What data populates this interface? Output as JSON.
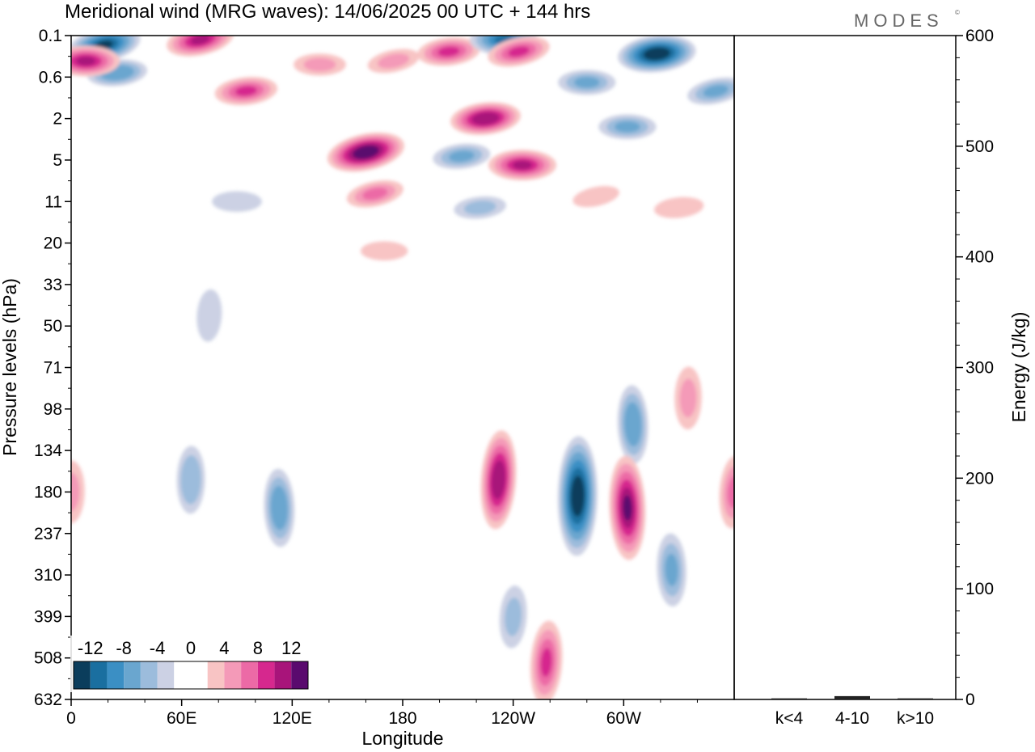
{
  "title": "Meridional wind (MRG waves):  14/06/2025  00 UTC  + 144 hrs",
  "brand": "MODES",
  "brand_mark": "©",
  "chart_data": [
    {
      "type": "heatmap",
      "variable": "Meridional wind",
      "xlabel": "Longitude",
      "ylabel": "Pressure levels (hPa)",
      "x_ticks": [
        "0",
        "60E",
        "120E",
        "180",
        "120W",
        "60W"
      ],
      "x_tick_positions_deg": [
        0,
        60,
        120,
        180,
        240,
        300
      ],
      "xlim_deg": [
        0,
        360
      ],
      "y_ticks": [
        "0.1",
        "0.6",
        "2",
        "5",
        "11",
        "20",
        "33",
        "50",
        "71",
        "98",
        "134",
        "180",
        "237",
        "310",
        "399",
        "508",
        "632"
      ],
      "colorbar": {
        "labels": [
          "-12",
          "-8",
          "-4",
          "0",
          "4",
          "8",
          "12"
        ],
        "levels": [
          -14,
          -12,
          -10,
          -8,
          -6,
          -4,
          -2,
          0,
          2,
          4,
          6,
          8,
          10,
          12,
          14
        ],
        "colors": [
          "#0b3d5c",
          "#1a6fa0",
          "#3b8fc4",
          "#6aa6cf",
          "#9cbcdc",
          "#ccd1e4",
          "#ffffff",
          "#ffffff",
          "#f8c4c4",
          "#f49ab8",
          "#ec6aa6",
          "#d6288e",
          "#a8147a",
          "#5a0a6e"
        ]
      },
      "features": [
        {
          "lon": 18,
          "p": 0.15,
          "value": -12
        },
        {
          "lon": 25,
          "p": 0.5,
          "value": -7
        },
        {
          "lon": 8,
          "p": 0.3,
          "value": 10
        },
        {
          "lon": 70,
          "p": 0.12,
          "value": 10
        },
        {
          "lon": 95,
          "p": 0.9,
          "value": 8
        },
        {
          "lon": 135,
          "p": 0.35,
          "value": 4
        },
        {
          "lon": 175,
          "p": 0.3,
          "value": 4
        },
        {
          "lon": 205,
          "p": 0.2,
          "value": 8
        },
        {
          "lon": 235,
          "p": 0.12,
          "value": -10
        },
        {
          "lon": 243,
          "p": 0.2,
          "value": 8
        },
        {
          "lon": 318,
          "p": 0.22,
          "value": -14
        },
        {
          "lon": 280,
          "p": 0.7,
          "value": -6
        },
        {
          "lon": 350,
          "p": 0.9,
          "value": -6
        },
        {
          "lon": 225,
          "p": 2,
          "value": 11
        },
        {
          "lon": 302,
          "p": 2.4,
          "value": -6
        },
        {
          "lon": 160,
          "p": 4.2,
          "value": 14
        },
        {
          "lon": 212,
          "p": 4.6,
          "value": -6
        },
        {
          "lon": 245,
          "p": 5.5,
          "value": 10
        },
        {
          "lon": 165,
          "p": 9.5,
          "value": 6
        },
        {
          "lon": 222,
          "p": 12,
          "value": -4
        },
        {
          "lon": 90,
          "p": 11,
          "value": -3
        },
        {
          "lon": 285,
          "p": 10,
          "value": 2
        },
        {
          "lon": 330,
          "p": 12,
          "value": 3
        },
        {
          "lon": 170,
          "p": 22,
          "value": 2
        },
        {
          "lon": 75,
          "p": 45,
          "value": -2
        },
        {
          "lon": 335,
          "p": 90,
          "value": 4
        },
        {
          "lon": 305,
          "p": 110,
          "value": -7
        },
        {
          "lon": 232,
          "p": 165,
          "value": 11
        },
        {
          "lon": 275,
          "p": 185,
          "value": -15
        },
        {
          "lon": 302,
          "p": 200,
          "value": 12
        },
        {
          "lon": 360,
          "p": 180,
          "value": 6
        },
        {
          "lon": 65,
          "p": 165,
          "value": -5
        },
        {
          "lon": 113,
          "p": 200,
          "value": -7
        },
        {
          "lon": 258,
          "p": 520,
          "value": 8
        },
        {
          "lon": 0,
          "p": 180,
          "value": 4
        },
        {
          "lon": 326,
          "p": 300,
          "value": -6
        },
        {
          "lon": 240,
          "p": 400,
          "value": -4
        }
      ]
    },
    {
      "type": "bar",
      "categories": [
        "k<4",
        "4-10",
        "k>10"
      ],
      "values": [
        1,
        3,
        1
      ],
      "ylabel": "Energy (J/kg)",
      "ylim": [
        0,
        600
      ],
      "y_ticks": [
        "0",
        "100",
        "200",
        "300",
        "400",
        "500",
        "600"
      ]
    }
  ]
}
